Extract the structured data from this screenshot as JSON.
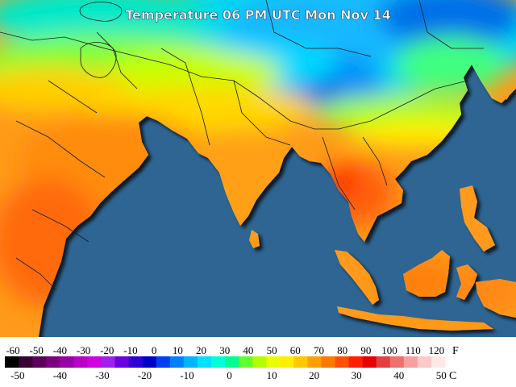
{
  "map": {
    "title": "Temperature 06 PM UTC Mon Nov 14",
    "ocean_color": "#2e6593",
    "border_color": "#1a1a1a"
  },
  "legend": {
    "fahrenheit_unit": "F",
    "celsius_unit": "C",
    "fahrenheit_ticks": [
      "-60",
      "-50",
      "-40",
      "-30",
      "-20",
      "-10",
      "0",
      "10",
      "20",
      "30",
      "40",
      "50",
      "60",
      "70",
      "80",
      "90",
      "100",
      "110",
      "120"
    ],
    "celsius_ticks": [
      "-50",
      "-40",
      "-30",
      "-20",
      "-10",
      "0",
      "10",
      "20",
      "30",
      "40",
      "50"
    ],
    "colors": [
      "#000000",
      "#3a0033",
      "#5a005a",
      "#7a0080",
      "#9a00a8",
      "#b800c8",
      "#d000e0",
      "#a020f0",
      "#6a00e0",
      "#3000d8",
      "#0000c8",
      "#0040f0",
      "#0080ff",
      "#00b4ff",
      "#00e0ff",
      "#00ffd8",
      "#00ff90",
      "#60ff30",
      "#b0ff00",
      "#e8ff00",
      "#ffee00",
      "#ffc800",
      "#ffa000",
      "#ff7800",
      "#ff5000",
      "#ff2000",
      "#e80000",
      "#e04040",
      "#f07070",
      "#f8a0a0",
      "#fcc8c8",
      "#ffe8e8"
    ]
  }
}
